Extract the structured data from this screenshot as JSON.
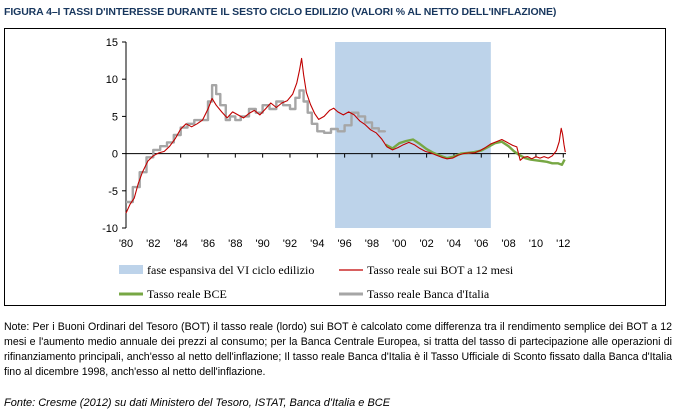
{
  "figure": {
    "title": "FIGURA 4–I TASSI D'INTERESSE DURANTE IL SESTO CICLO EDILIZIO (VALORI % AL NETTO DELL'INFLAZIONE)",
    "note": "Note: Per i Buoni Ordinari del Tesoro (BOT) il tasso reale (lordo) sui BOT è calcolato come differenza tra il rendimento semplice dei BOT a 12 mesi e l'aumento medio annuale dei prezzi al consumo; per la Banca Centrale Europea, si tratta del tasso di partecipazione alle operazioni di rifinanziamento principali, anch'esso al netto dell'inflazione; Il tasso reale Banca d'Italia è il Tasso Ufficiale di Sconto fissato dalla Banca d'Italia fino al dicembre 1998, anch'esso al netto dell'inflazione.",
    "source": "Fonte: Cresme (2012) su dati Ministero del Tesoro, ISTAT, Banca d'Italia e BCE"
  },
  "chart_data": {
    "type": "line",
    "title": "",
    "xlabel": "",
    "ylabel": "",
    "xlim": [
      1980,
      2012.2
    ],
    "ylim": [
      -10,
      15
    ],
    "yticks": [
      -10,
      -5,
      0,
      5,
      10,
      15
    ],
    "xtick_labels": [
      "'80",
      "'82",
      "'84",
      "'86",
      "'88",
      "'90",
      "'92",
      "'94",
      "'96",
      "'98",
      "'00",
      "'02",
      "'04",
      "'06",
      "'08",
      "'10",
      "'12"
    ],
    "xtick_years": [
      1980,
      1982,
      1984,
      1986,
      1988,
      1990,
      1992,
      1994,
      1996,
      1998,
      2000,
      2002,
      2004,
      2006,
      2008,
      2010,
      2012
    ],
    "grid": false,
    "legend_position": "bottom",
    "shaded_period": {
      "name": "fase espansiva del VI ciclo edilizio",
      "from": 1995.3,
      "to": 2006.7,
      "color": "#bdd3ea"
    },
    "series": [
      {
        "name": "Tasso reale sui BOT a 12 mesi",
        "color": "#c00000",
        "width": 1.1,
        "points": [
          [
            1980,
            -8
          ],
          [
            1980.3,
            -6.8
          ],
          [
            1980.6,
            -6
          ],
          [
            1980.9,
            -4
          ],
          [
            1981.2,
            -2.5
          ],
          [
            1981.6,
            -1
          ],
          [
            1982,
            -0.3
          ],
          [
            1982.4,
            0.1
          ],
          [
            1982.8,
            0.3
          ],
          [
            1983.2,
            1
          ],
          [
            1983.6,
            2
          ],
          [
            1984,
            3.3
          ],
          [
            1984.4,
            4
          ],
          [
            1984.8,
            3.6
          ],
          [
            1985.2,
            4
          ],
          [
            1985.6,
            4.5
          ],
          [
            1986,
            6
          ],
          [
            1986.3,
            7.4
          ],
          [
            1986.6,
            6.5
          ],
          [
            1987,
            5.6
          ],
          [
            1987.4,
            4.8
          ],
          [
            1987.8,
            5.6
          ],
          [
            1988.2,
            5.2
          ],
          [
            1988.6,
            4.8
          ],
          [
            1989,
            5.4
          ],
          [
            1989.4,
            5.8
          ],
          [
            1989.8,
            5.2
          ],
          [
            1990.2,
            6
          ],
          [
            1990.6,
            6.8
          ],
          [
            1991,
            6.2
          ],
          [
            1991.4,
            6.8
          ],
          [
            1991.8,
            7.1
          ],
          [
            1992.2,
            8
          ],
          [
            1992.5,
            9.5
          ],
          [
            1992.7,
            11.2
          ],
          [
            1992.85,
            12.8
          ],
          [
            1993.0,
            10.6
          ],
          [
            1993.2,
            8.2
          ],
          [
            1993.5,
            6.6
          ],
          [
            1993.8,
            5.4
          ],
          [
            1994.1,
            4.6
          ],
          [
            1994.5,
            5
          ],
          [
            1994.9,
            5.8
          ],
          [
            1995.2,
            6.1
          ],
          [
            1995.5,
            5.6
          ],
          [
            1995.9,
            5.2
          ],
          [
            1996.3,
            5.6
          ],
          [
            1996.7,
            5.2
          ],
          [
            1997.1,
            4.4
          ],
          [
            1997.5,
            3.9
          ],
          [
            1997.9,
            3.2
          ],
          [
            1998.3,
            2.8
          ],
          [
            1998.7,
            2
          ],
          [
            1999.1,
            0.9
          ],
          [
            1999.5,
            0.5
          ],
          [
            1999.9,
            0.8
          ],
          [
            2000.3,
            1.2
          ],
          [
            2000.7,
            1.5
          ],
          [
            2001.1,
            1.2
          ],
          [
            2001.5,
            0.7
          ],
          [
            2001.9,
            0.3
          ],
          [
            2002.3,
            0.1
          ],
          [
            2002.7,
            -0.2
          ],
          [
            2003.1,
            -0.5
          ],
          [
            2003.5,
            -0.7
          ],
          [
            2003.9,
            -0.6
          ],
          [
            2004.3,
            -0.2
          ],
          [
            2004.7,
            0
          ],
          [
            2005.1,
            0.1
          ],
          [
            2005.5,
            0.1
          ],
          [
            2005.9,
            0.4
          ],
          [
            2006.3,
            0.8
          ],
          [
            2006.7,
            1.3
          ],
          [
            2007.1,
            1.6
          ],
          [
            2007.5,
            1.9
          ],
          [
            2007.9,
            1.5
          ],
          [
            2008.3,
            1.1
          ],
          [
            2008.6,
            0.9
          ],
          [
            2008.85,
            -0.9
          ],
          [
            2009.1,
            -0.5
          ],
          [
            2009.4,
            -0.4
          ],
          [
            2009.7,
            -0.7
          ],
          [
            2010,
            -0.4
          ],
          [
            2010.3,
            -0.6
          ],
          [
            2010.6,
            -0.4
          ],
          [
            2010.9,
            -0.6
          ],
          [
            2011.2,
            -0.3
          ],
          [
            2011.5,
            0.4
          ],
          [
            2011.7,
            1.6
          ],
          [
            2011.85,
            3.4
          ],
          [
            2011.95,
            2.6
          ],
          [
            2012.05,
            1.2
          ],
          [
            2012.15,
            0.2
          ]
        ]
      },
      {
        "name": "Tasso reale BCE",
        "color": "#77a744",
        "width": 2.4,
        "points": [
          [
            1999,
            1.2
          ],
          [
            1999.5,
            0.7
          ],
          [
            2000,
            1.4
          ],
          [
            2000.5,
            1.7
          ],
          [
            2001,
            1.9
          ],
          [
            2001.5,
            1.3
          ],
          [
            2002,
            0.6
          ],
          [
            2002.5,
            0.1
          ],
          [
            2003,
            -0.3
          ],
          [
            2003.5,
            -0.6
          ],
          [
            2004,
            -0.4
          ],
          [
            2004.5,
            0
          ],
          [
            2005,
            0.1
          ],
          [
            2005.5,
            0.2
          ],
          [
            2006,
            0.4
          ],
          [
            2006.5,
            0.9
          ],
          [
            2007,
            1.4
          ],
          [
            2007.5,
            1.6
          ],
          [
            2008,
            1
          ],
          [
            2008.4,
            0.3
          ],
          [
            2008.8,
            -0.2
          ],
          [
            2009.2,
            -0.6
          ],
          [
            2009.6,
            -0.8
          ],
          [
            2010,
            -0.9
          ],
          [
            2010.4,
            -1
          ],
          [
            2010.8,
            -1.1
          ],
          [
            2011.2,
            -1.3
          ],
          [
            2011.6,
            -1.3
          ],
          [
            2011.9,
            -1.5
          ],
          [
            2012.1,
            -0.8
          ]
        ]
      },
      {
        "name": "Tasso reale Banca d'Italia",
        "color": "#a6a6a6",
        "width": 2.4,
        "steps": [
          [
            1980,
            -6.5
          ],
          [
            1980.5,
            -4.5
          ],
          [
            1981,
            -2.5
          ],
          [
            1981.5,
            -0.5
          ],
          [
            1982,
            0.5
          ],
          [
            1982.5,
            1
          ],
          [
            1983,
            1.5
          ],
          [
            1983.5,
            2.5
          ],
          [
            1984,
            3.5
          ],
          [
            1984.5,
            4
          ],
          [
            1985,
            4.5
          ],
          [
            1985.5,
            4.5
          ],
          [
            1986,
            7
          ],
          [
            1986.3,
            9.2
          ],
          [
            1986.6,
            8
          ],
          [
            1986.9,
            6.5
          ],
          [
            1987.3,
            4.5
          ],
          [
            1987.6,
            5
          ],
          [
            1988,
            4.5
          ],
          [
            1988.4,
            5
          ],
          [
            1989,
            6
          ],
          [
            1989.5,
            5.5
          ],
          [
            1990,
            6.5
          ],
          [
            1990.5,
            6
          ],
          [
            1991,
            7
          ],
          [
            1991.5,
            6.5
          ],
          [
            1992,
            6
          ],
          [
            1992.4,
            7.5
          ],
          [
            1992.7,
            8.5
          ],
          [
            1993,
            7
          ],
          [
            1993.3,
            5.5
          ],
          [
            1993.6,
            4
          ],
          [
            1994,
            3
          ],
          [
            1994.5,
            2.8
          ],
          [
            1995,
            3.3
          ],
          [
            1995.5,
            3
          ],
          [
            1996,
            3.8
          ],
          [
            1996.5,
            5.5
          ],
          [
            1997,
            5
          ],
          [
            1997.5,
            4.2
          ],
          [
            1998,
            3.4
          ],
          [
            1998.5,
            3
          ],
          [
            1998.95,
            3.1
          ]
        ]
      }
    ]
  },
  "legend": {
    "items": [
      {
        "label": "fase espansiva del VI ciclo edilizio",
        "kind": "box",
        "color": "#bdd3ea"
      },
      {
        "label": "Tasso reale sui BOT a 12 mesi",
        "kind": "thin-line",
        "color": "#c00000"
      },
      {
        "label": "Tasso reale BCE",
        "kind": "thick-line",
        "color": "#77a744"
      },
      {
        "label": "Tasso reale Banca d'Italia",
        "kind": "thick-line",
        "color": "#a6a6a6"
      }
    ]
  }
}
